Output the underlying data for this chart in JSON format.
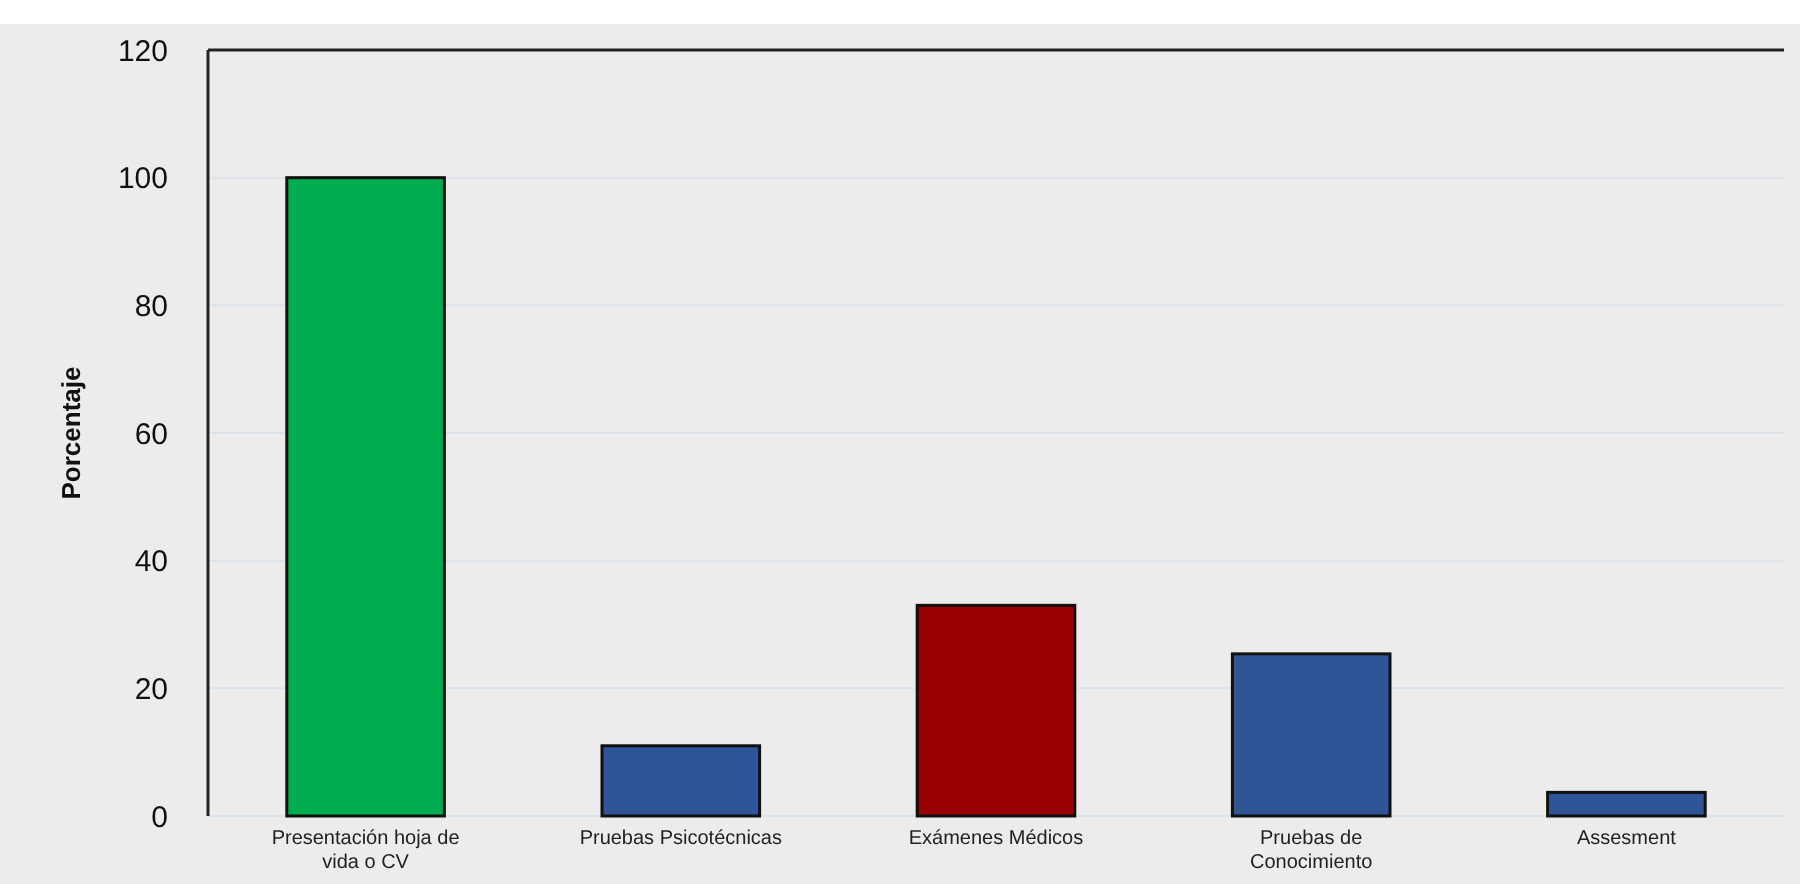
{
  "chart_data": {
    "type": "bar",
    "ylabel": "Porcentaje",
    "categories": [
      "Presentación hoja de vida o CV",
      "Pruebas Psicotécnicas",
      "Exámenes Médicos",
      "Pruebas de Conocimiento",
      "Assesment"
    ],
    "values": [
      100,
      11,
      33,
      25.4,
      3.7
    ],
    "colors": [
      "#00ac4e",
      "#2e5597",
      "#990000",
      "#2e5597",
      "#2e5597"
    ],
    "ylim": [
      0,
      120
    ],
    "yticks": [
      0,
      20,
      40,
      60,
      80,
      100,
      120
    ],
    "grid": "y"
  }
}
